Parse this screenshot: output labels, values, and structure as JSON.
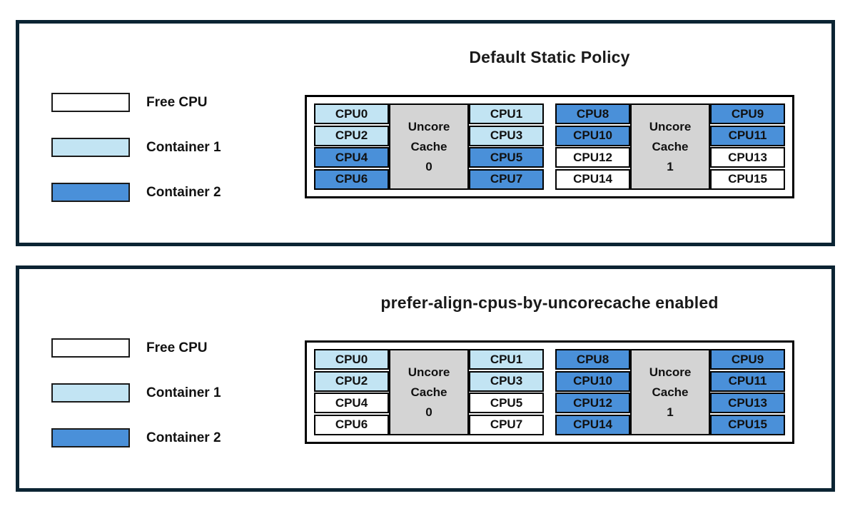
{
  "colors": {
    "free_cpu": "#FFFFFF",
    "container1": "#C2E4F3",
    "container2": "#4A90D9",
    "cache_block": "#D4D4D4",
    "panel_border": "#0B2433",
    "cell_border": "#000000"
  },
  "legend": {
    "items": [
      {
        "label": "Free CPU",
        "owner": "free_cpu"
      },
      {
        "label": "Container 1",
        "owner": "container1"
      },
      {
        "label": "Container 2",
        "owner": "container2"
      }
    ]
  },
  "panels": [
    {
      "title": "Default Static Policy",
      "groups": [
        {
          "cache_lines": [
            "Uncore",
            "Cache",
            "0"
          ],
          "columns": {
            "left": [
              {
                "label": "CPU0",
                "owner": "container1"
              },
              {
                "label": "CPU2",
                "owner": "container1"
              },
              {
                "label": "CPU4",
                "owner": "container2"
              },
              {
                "label": "CPU6",
                "owner": "container2"
              }
            ],
            "right": [
              {
                "label": "CPU1",
                "owner": "container1"
              },
              {
                "label": "CPU3",
                "owner": "container1"
              },
              {
                "label": "CPU5",
                "owner": "container2"
              },
              {
                "label": "CPU7",
                "owner": "container2"
              }
            ]
          }
        },
        {
          "cache_lines": [
            "Uncore",
            "Cache",
            "1"
          ],
          "columns": {
            "left": [
              {
                "label": "CPU8",
                "owner": "container2"
              },
              {
                "label": "CPU10",
                "owner": "container2"
              },
              {
                "label": "CPU12",
                "owner": "free_cpu"
              },
              {
                "label": "CPU14",
                "owner": "free_cpu"
              }
            ],
            "right": [
              {
                "label": "CPU9",
                "owner": "container2"
              },
              {
                "label": "CPU11",
                "owner": "container2"
              },
              {
                "label": "CPU13",
                "owner": "free_cpu"
              },
              {
                "label": "CPU15",
                "owner": "free_cpu"
              }
            ]
          }
        }
      ]
    },
    {
      "title": "prefer-align-cpus-by-uncorecache enabled",
      "groups": [
        {
          "cache_lines": [
            "Uncore",
            "Cache",
            "0"
          ],
          "columns": {
            "left": [
              {
                "label": "CPU0",
                "owner": "container1"
              },
              {
                "label": "CPU2",
                "owner": "container1"
              },
              {
                "label": "CPU4",
                "owner": "free_cpu"
              },
              {
                "label": "CPU6",
                "owner": "free_cpu"
              }
            ],
            "right": [
              {
                "label": "CPU1",
                "owner": "container1"
              },
              {
                "label": "CPU3",
                "owner": "container1"
              },
              {
                "label": "CPU5",
                "owner": "free_cpu"
              },
              {
                "label": "CPU7",
                "owner": "free_cpu"
              }
            ]
          }
        },
        {
          "cache_lines": [
            "Uncore",
            "Cache",
            "1"
          ],
          "columns": {
            "left": [
              {
                "label": "CPU8",
                "owner": "container2"
              },
              {
                "label": "CPU10",
                "owner": "container2"
              },
              {
                "label": "CPU12",
                "owner": "container2"
              },
              {
                "label": "CPU14",
                "owner": "container2"
              }
            ],
            "right": [
              {
                "label": "CPU9",
                "owner": "container2"
              },
              {
                "label": "CPU11",
                "owner": "container2"
              },
              {
                "label": "CPU13",
                "owner": "container2"
              },
              {
                "label": "CPU15",
                "owner": "container2"
              }
            ]
          }
        }
      ]
    }
  ]
}
